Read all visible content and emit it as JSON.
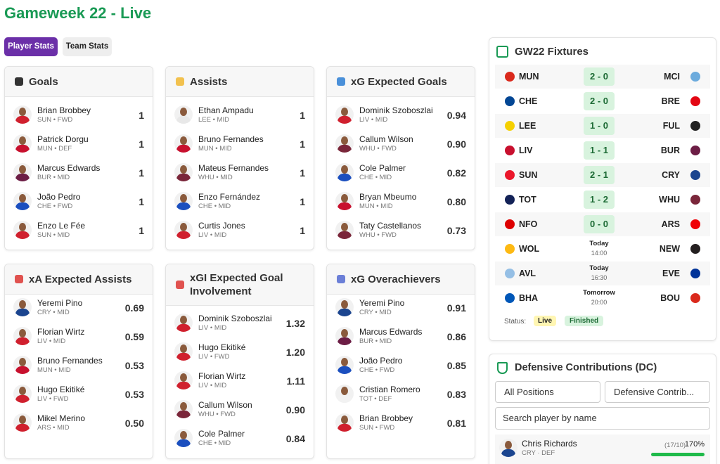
{
  "header": {
    "title": "Gameweek 22 - Live"
  },
  "tabs": [
    "Player Stats",
    "Team Stats"
  ],
  "cards": [
    {
      "title": "Goals",
      "icon": "#333",
      "rows": [
        {
          "name": "Brian Brobbey",
          "meta": "SUN • FWD",
          "value": "1",
          "kit": "#d0202e"
        },
        {
          "name": "Patrick Dorgu",
          "meta": "MUN • DEF",
          "value": "1",
          "kit": "#c8102e"
        },
        {
          "name": "Marcus Edwards",
          "meta": "BUR • MID",
          "value": "1",
          "kit": "#6c1d45"
        },
        {
          "name": "João Pedro",
          "meta": "CHE • FWD",
          "value": "1",
          "kit": "#1b4fbf"
        },
        {
          "name": "Enzo Le Fée",
          "meta": "SUN • MID",
          "value": "1",
          "kit": "#d0202e"
        }
      ]
    },
    {
      "title": "Assists",
      "icon": "#f2c14e",
      "rows": [
        {
          "name": "Ethan Ampadu",
          "meta": "LEE • MID",
          "value": "1",
          "kit": "#e8e8e8"
        },
        {
          "name": "Bruno Fernandes",
          "meta": "MUN • MID",
          "value": "1",
          "kit": "#c8102e"
        },
        {
          "name": "Mateus Fernandes",
          "meta": "WHU • MID",
          "value": "1",
          "kit": "#7a263a"
        },
        {
          "name": "Enzo Fernández",
          "meta": "CHE • MID",
          "value": "1",
          "kit": "#1b4fbf"
        },
        {
          "name": "Curtis Jones",
          "meta": "LIV • MID",
          "value": "1",
          "kit": "#d0202e"
        }
      ]
    },
    {
      "title": "xG Expected Goals",
      "icon": "#4a90d9",
      "rows": [
        {
          "name": "Dominik Szoboszlai",
          "meta": "LIV • MID",
          "value": "0.94",
          "kit": "#d0202e"
        },
        {
          "name": "Callum Wilson",
          "meta": "WHU • FWD",
          "value": "0.90",
          "kit": "#7a263a"
        },
        {
          "name": "Cole Palmer",
          "meta": "CHE • MID",
          "value": "0.82",
          "kit": "#1b4fbf"
        },
        {
          "name": "Bryan Mbeumo",
          "meta": "MUN • MID",
          "value": "0.80",
          "kit": "#c8102e"
        },
        {
          "name": "Taty Castellanos",
          "meta": "WHU • FWD",
          "value": "0.73",
          "kit": "#7a263a"
        }
      ]
    },
    {
      "title": "xA Expected Assists",
      "icon": "#e0524f",
      "rows": [
        {
          "name": "Yeremi Pino",
          "meta": "CRY • MID",
          "value": "0.69",
          "kit": "#1b458f"
        },
        {
          "name": "Florian Wirtz",
          "meta": "LIV • MID",
          "value": "0.59",
          "kit": "#d0202e"
        },
        {
          "name": "Bruno Fernandes",
          "meta": "MUN • MID",
          "value": "0.53",
          "kit": "#c8102e"
        },
        {
          "name": "Hugo Ekitiké",
          "meta": "LIV • FWD",
          "value": "0.53",
          "kit": "#d0202e"
        },
        {
          "name": "Mikel Merino",
          "meta": "ARS • MID",
          "value": "0.50",
          "kit": "#d0202e"
        }
      ]
    },
    {
      "title": "xGI Expected Goal Involvement",
      "icon": "#e0524f",
      "rows": [
        {
          "name": "Dominik Szoboszlai",
          "meta": "LIV • MID",
          "value": "1.32",
          "kit": "#d0202e"
        },
        {
          "name": "Hugo Ekitiké",
          "meta": "LIV • FWD",
          "value": "1.20",
          "kit": "#d0202e"
        },
        {
          "name": "Florian Wirtz",
          "meta": "LIV • MID",
          "value": "1.11",
          "kit": "#d0202e"
        },
        {
          "name": "Callum Wilson",
          "meta": "WHU • FWD",
          "value": "0.90",
          "kit": "#7a263a"
        },
        {
          "name": "Cole Palmer",
          "meta": "CHE • MID",
          "value": "0.84",
          "kit": "#1b4fbf"
        }
      ]
    },
    {
      "title": "xG Overachievers",
      "icon": "#6b7fd7",
      "rows": [
        {
          "name": "Yeremi Pino",
          "meta": "CRY • MID",
          "value": "0.91",
          "kit": "#1b458f"
        },
        {
          "name": "Marcus Edwards",
          "meta": "BUR • MID",
          "value": "0.86",
          "kit": "#6c1d45"
        },
        {
          "name": "João Pedro",
          "meta": "CHE • FWD",
          "value": "0.85",
          "kit": "#1b4fbf"
        },
        {
          "name": "Cristian Romero",
          "meta": "TOT • DEF",
          "value": "0.83",
          "kit": "#f2f2f2"
        },
        {
          "name": "Brian Brobbey",
          "meta": "SUN • FWD",
          "value": "0.81",
          "kit": "#d0202e"
        }
      ]
    }
  ],
  "fixtures": {
    "title": "GW22 Fixtures",
    "matches": [
      {
        "home": "MUN",
        "score": "2 - 0",
        "away": "MCI",
        "hc": "#da291c",
        "ac": "#6cabdd"
      },
      {
        "home": "CHE",
        "score": "2 - 0",
        "away": "BRE",
        "hc": "#034694",
        "ac": "#e30613"
      },
      {
        "home": "LEE",
        "score": "1 - 0",
        "away": "FUL",
        "hc": "#f5d000",
        "ac": "#222222"
      },
      {
        "home": "LIV",
        "score": "1 - 1",
        "away": "BUR",
        "hc": "#c8102e",
        "ac": "#6c1d45"
      },
      {
        "home": "SUN",
        "score": "2 - 1",
        "away": "CRY",
        "hc": "#eb172b",
        "ac": "#1b458f"
      },
      {
        "home": "TOT",
        "score": "1 - 2",
        "away": "WHU",
        "hc": "#132257",
        "ac": "#7a263a"
      },
      {
        "home": "NFO",
        "score": "0 - 0",
        "away": "ARS",
        "hc": "#dd0000",
        "ac": "#ef0107"
      },
      {
        "home": "WOL",
        "day": "Today",
        "time": "14:00",
        "away": "NEW",
        "hc": "#fdb913",
        "ac": "#241f20"
      },
      {
        "home": "AVL",
        "day": "Today",
        "time": "16:30",
        "away": "EVE",
        "hc": "#95bfe5",
        "ac": "#003399"
      },
      {
        "home": "BHA",
        "day": "Tomorrow",
        "time": "20:00",
        "away": "BOU",
        "hc": "#0057b8",
        "ac": "#da291c"
      }
    ],
    "status_label": "Status:",
    "legend": [
      "Live",
      "Finished"
    ]
  },
  "dc": {
    "title": "Defensive Contributions (DC)",
    "filters": [
      "All Positions",
      "Defensive Contrib..."
    ],
    "search_placeholder": "Search player by name",
    "players": [
      {
        "name": "Chris Richards",
        "meta": "CRY · DEF",
        "ratio": "(17/10)",
        "percent": "170%"
      }
    ]
  }
}
